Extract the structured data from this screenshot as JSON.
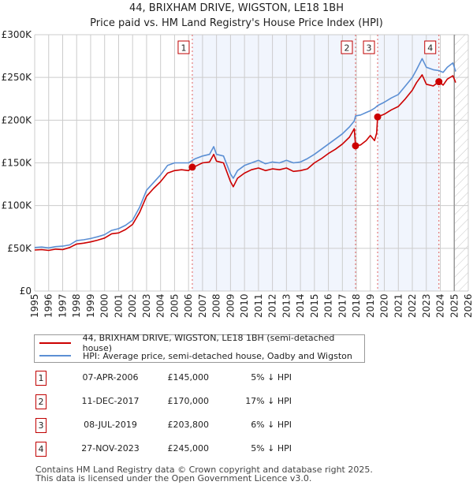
{
  "chart_data": {
    "type": "line",
    "title": "44, BRIXHAM DRIVE, WIGSTON, LE18 1BH",
    "subtitle": "Price paid vs. HM Land Registry's House Price Index (HPI)",
    "xlabel": "",
    "ylabel": "",
    "xlim": [
      1995,
      2026
    ],
    "ylim": [
      0,
      300000
    ],
    "grid": true,
    "x_ticks": [
      "1995",
      "1996",
      "1997",
      "1998",
      "1999",
      "2000",
      "2001",
      "2002",
      "2003",
      "2004",
      "2005",
      "2006",
      "2007",
      "2008",
      "2009",
      "2010",
      "2011",
      "2012",
      "2013",
      "2014",
      "2015",
      "2016",
      "2017",
      "2018",
      "2019",
      "2020",
      "2021",
      "2022",
      "2023",
      "2024",
      "2025",
      "2026"
    ],
    "y_ticks": [
      {
        "value": 0,
        "label": "£0"
      },
      {
        "value": 50000,
        "label": "£50K"
      },
      {
        "value": 100000,
        "label": "£100K"
      },
      {
        "value": 150000,
        "label": "£150K"
      },
      {
        "value": 200000,
        "label": "£200K"
      },
      {
        "value": 250000,
        "label": "£250K"
      },
      {
        "value": 300000,
        "label": "£300K"
      }
    ],
    "legend_position": "below-chart",
    "data_end_year": 2025.0,
    "series": [
      {
        "name": "44, BRIXHAM DRIVE, WIGSTON, LE18 1BH (semi-detached house)",
        "color": "#cc0000",
        "x": [
          1995.0,
          1995.5,
          1996.0,
          1996.5,
          1997.0,
          1997.5,
          1998.0,
          1998.5,
          1999.0,
          1999.5,
          2000.0,
          2000.5,
          2001.0,
          2001.5,
          2002.0,
          2002.5,
          2003.0,
          2003.5,
          2004.0,
          2004.5,
          2005.0,
          2005.5,
          2006.0,
          2006.27,
          2006.5,
          2007.0,
          2007.5,
          2007.8,
          2008.0,
          2008.5,
          2009.0,
          2009.2,
          2009.5,
          2010.0,
          2010.5,
          2011.0,
          2011.5,
          2012.0,
          2012.5,
          2013.0,
          2013.5,
          2014.0,
          2014.5,
          2015.0,
          2015.5,
          2016.0,
          2016.5,
          2017.0,
          2017.5,
          2017.85,
          2017.94,
          2018.3,
          2018.7,
          2019.0,
          2019.3,
          2019.45,
          2019.52,
          2020.0,
          2020.5,
          2021.0,
          2021.5,
          2022.0,
          2022.3,
          2022.7,
          2023.0,
          2023.5,
          2023.9,
          2024.2,
          2024.5,
          2024.9,
          2025.1
        ],
        "values": [
          48000,
          48500,
          47500,
          49000,
          48500,
          51000,
          55000,
          56000,
          57500,
          59500,
          62000,
          67000,
          68000,
          72000,
          78000,
          92000,
          111000,
          120000,
          128000,
          138000,
          141000,
          142000,
          141000,
          145000,
          146000,
          150000,
          151000,
          160000,
          152000,
          150000,
          128000,
          122000,
          132000,
          138000,
          142000,
          144000,
          141000,
          143000,
          142000,
          144000,
          140000,
          141000,
          143000,
          150000,
          155000,
          161000,
          166000,
          172000,
          180000,
          190000,
          170000,
          171000,
          176000,
          182000,
          176000,
          185000,
          203800,
          207000,
          212000,
          216000,
          225000,
          235000,
          244000,
          253000,
          242000,
          240000,
          245000,
          241000,
          248000,
          252000,
          244000
        ]
      },
      {
        "name": "HPI: Average price, semi-detached house, Oadby and Wigston",
        "color": "#5b8fd4",
        "x": [
          1995.0,
          1995.5,
          1996.0,
          1996.5,
          1997.0,
          1997.5,
          1998.0,
          1998.5,
          1999.0,
          1999.5,
          2000.0,
          2000.5,
          2001.0,
          2001.5,
          2002.0,
          2002.5,
          2003.0,
          2003.5,
          2004.0,
          2004.5,
          2005.0,
          2005.5,
          2006.0,
          2006.27,
          2006.5,
          2007.0,
          2007.5,
          2007.8,
          2008.0,
          2008.5,
          2009.0,
          2009.2,
          2009.5,
          2010.0,
          2010.5,
          2011.0,
          2011.5,
          2012.0,
          2012.5,
          2013.0,
          2013.5,
          2014.0,
          2014.5,
          2015.0,
          2015.5,
          2016.0,
          2016.5,
          2017.0,
          2017.5,
          2017.85,
          2017.94,
          2018.3,
          2018.7,
          2019.0,
          2019.3,
          2019.45,
          2019.52,
          2020.0,
          2020.5,
          2021.0,
          2021.5,
          2022.0,
          2022.3,
          2022.7,
          2023.0,
          2023.5,
          2023.9,
          2024.2,
          2024.5,
          2024.9,
          2025.1
        ],
        "values": [
          51000,
          51500,
          50500,
          52000,
          52500,
          54000,
          59000,
          60000,
          61500,
          63500,
          66000,
          71000,
          73000,
          77000,
          83000,
          98000,
          118000,
          127000,
          136000,
          147000,
          150000,
          150000,
          150000,
          153000,
          155000,
          158000,
          160000,
          169000,
          160000,
          158000,
          137000,
          132000,
          141000,
          147000,
          150000,
          153000,
          149000,
          151000,
          150000,
          153000,
          150000,
          151000,
          155000,
          160000,
          166000,
          172000,
          178000,
          184000,
          192000,
          199000,
          205000,
          206000,
          209000,
          211000,
          214000,
          216000,
          217000,
          221000,
          226000,
          230000,
          240000,
          250000,
          259000,
          272000,
          262000,
          259000,
          258000,
          256000,
          262000,
          267000,
          257000
        ]
      }
    ],
    "sales": [
      {
        "num": "1",
        "x": 2006.27,
        "value": 145000
      },
      {
        "num": "2",
        "x": 2017.94,
        "value": 170000
      },
      {
        "num": "3",
        "x": 2019.52,
        "value": 203800
      },
      {
        "num": "4",
        "x": 2023.9,
        "value": 245000
      }
    ]
  },
  "legend": {
    "property_label": "44, BRIXHAM DRIVE, WIGSTON, LE18 1BH (semi-detached house)",
    "hpi_label": "HPI: Average price, semi-detached house, Oadby and Wigston",
    "property_color": "#cc0000",
    "hpi_color": "#5b8fd4"
  },
  "transactions": [
    {
      "num": "1",
      "date": "07-APR-2006",
      "price": "£145,000",
      "hpi": "5% ↓ HPI"
    },
    {
      "num": "2",
      "date": "11-DEC-2017",
      "price": "£170,000",
      "hpi": "17% ↓ HPI"
    },
    {
      "num": "3",
      "date": "08-JUL-2019",
      "price": "£203,800",
      "hpi": "6% ↓ HPI"
    },
    {
      "num": "4",
      "date": "27-NOV-2023",
      "price": "£245,000",
      "hpi": "5% ↓ HPI"
    }
  ],
  "footer": {
    "line1": "Contains HM Land Registry data © Crown copyright and database right 2025.",
    "line2": "This data is licensed under the Open Government Licence v3.0."
  }
}
